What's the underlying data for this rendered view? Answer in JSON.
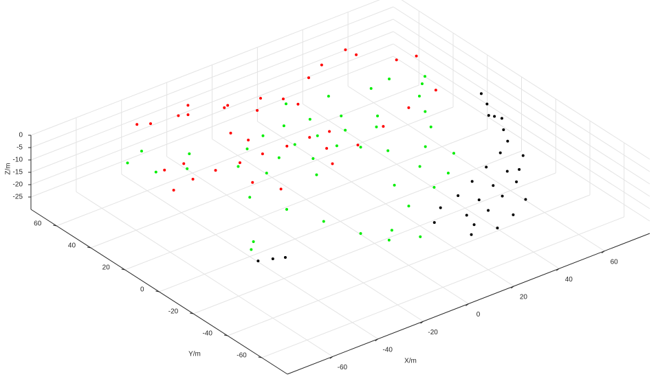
{
  "chart_data": {
    "type": "scatter3d",
    "xlabel": "X/m",
    "ylabel": "Y/m",
    "zlabel": "Z/m",
    "xlim": [
      -80,
      80
    ],
    "ylim": [
      -75,
      75
    ],
    "zlim": [
      -30,
      0
    ],
    "xticks": [
      -60,
      -40,
      -20,
      0,
      20,
      40,
      60
    ],
    "yticks": [
      -60,
      -40,
      -20,
      0,
      20,
      40,
      60
    ],
    "zticks": [
      0,
      -5,
      -10,
      -15,
      -20,
      -25
    ],
    "grid": true,
    "series": [
      {
        "color": "#00ee00",
        "x": [
          -30,
          -20,
          -10,
          0,
          10,
          20,
          30,
          -25,
          -15,
          -5,
          5,
          15,
          25,
          -12,
          -6,
          6,
          12,
          18,
          -40,
          -35,
          -30,
          -25,
          -20,
          -10,
          30,
          40,
          45,
          50,
          55,
          48,
          35,
          25,
          15,
          0,
          -15,
          -45,
          -55,
          -60,
          -50,
          -38,
          10,
          25,
          40,
          60,
          20,
          5,
          -62,
          -58
        ],
        "y": [
          20,
          28,
          32,
          33,
          31,
          26,
          18,
          10,
          16,
          20,
          20,
          17,
          12,
          -2,
          8,
          10,
          4,
          -4,
          0,
          -15,
          -30,
          -45,
          -55,
          -60,
          -10,
          0,
          10,
          20,
          25,
          35,
          -20,
          -30,
          -35,
          -40,
          -50,
          30,
          35,
          45,
          50,
          38,
          45,
          40,
          35,
          30,
          -20,
          -25,
          -30,
          -26
        ],
        "z": [
          -6,
          -6,
          -6,
          -6,
          -6,
          -6,
          -6,
          -6,
          -6,
          -6,
          -6,
          -6,
          -6,
          -6,
          -6,
          -6,
          -6,
          -6,
          -6,
          -6,
          -6,
          -6,
          -6,
          -6,
          -6,
          -6,
          -6,
          -6,
          -5,
          -5,
          -6,
          -6,
          -6,
          -6,
          -6,
          -6,
          -6,
          -5,
          -6,
          -6,
          -6,
          -6,
          -6,
          -6,
          -6,
          -6,
          -6,
          -6
        ]
      },
      {
        "color": "#000000",
        "x": [
          5,
          10,
          15,
          20,
          25,
          30,
          35,
          40,
          45,
          0,
          8,
          18,
          28,
          38,
          48,
          12,
          22,
          32,
          42,
          52,
          -65,
          -60,
          -56,
          60,
          62,
          64,
          66,
          63,
          61,
          55
        ],
        "y": [
          -70,
          -65,
          -72,
          -60,
          -68,
          -55,
          -62,
          -50,
          -45,
          -55,
          -48,
          -45,
          -40,
          -35,
          -30,
          -58,
          -52,
          -47,
          -42,
          -38,
          -38,
          -40,
          -42,
          -15,
          -8,
          -2,
          5,
          -12,
          -5,
          -25
        ],
        "z": [
          -6,
          -6,
          -6,
          -6,
          -6,
          -6,
          -6,
          -6,
          -5,
          -6,
          -6,
          -6,
          -6,
          -6,
          -6,
          -6,
          -6,
          -6,
          -6,
          -5,
          -6,
          -6,
          -6,
          -3,
          -6,
          -9,
          -4,
          -10,
          -2,
          -6
        ]
      },
      {
        "color": "#ff0000",
        "x": [
          -50,
          -40,
          -30,
          -20,
          -10,
          0,
          8,
          -5,
          10,
          25,
          40,
          55,
          -43,
          -40,
          -30,
          -28,
          -25,
          -15,
          -12,
          -5,
          -2,
          5,
          10,
          20,
          28,
          40,
          44,
          55,
          60,
          -55,
          -48,
          -60,
          -35,
          -30,
          0,
          -18,
          -22
        ],
        "y": [
          20,
          20,
          19,
          19,
          18,
          18,
          17,
          -2,
          3,
          8,
          13,
          17,
          62,
          58,
          55,
          52,
          56,
          48,
          50,
          42,
          44,
          40,
          38,
          45,
          48,
          50,
          49,
          40,
          35,
          30,
          28,
          18,
          5,
          -5,
          8,
          30,
          35
        ],
        "z": [
          -4,
          -4,
          -4,
          -4,
          -4,
          -4,
          -4,
          -4,
          -4,
          -4,
          -4,
          -4,
          -3,
          -2,
          -1,
          0,
          1,
          0,
          -1,
          -2,
          1,
          0,
          -3,
          1,
          2,
          3,
          0,
          -2,
          0,
          -3,
          -2,
          -4,
          -4,
          -4,
          -4,
          -4,
          -2
        ]
      }
    ]
  }
}
